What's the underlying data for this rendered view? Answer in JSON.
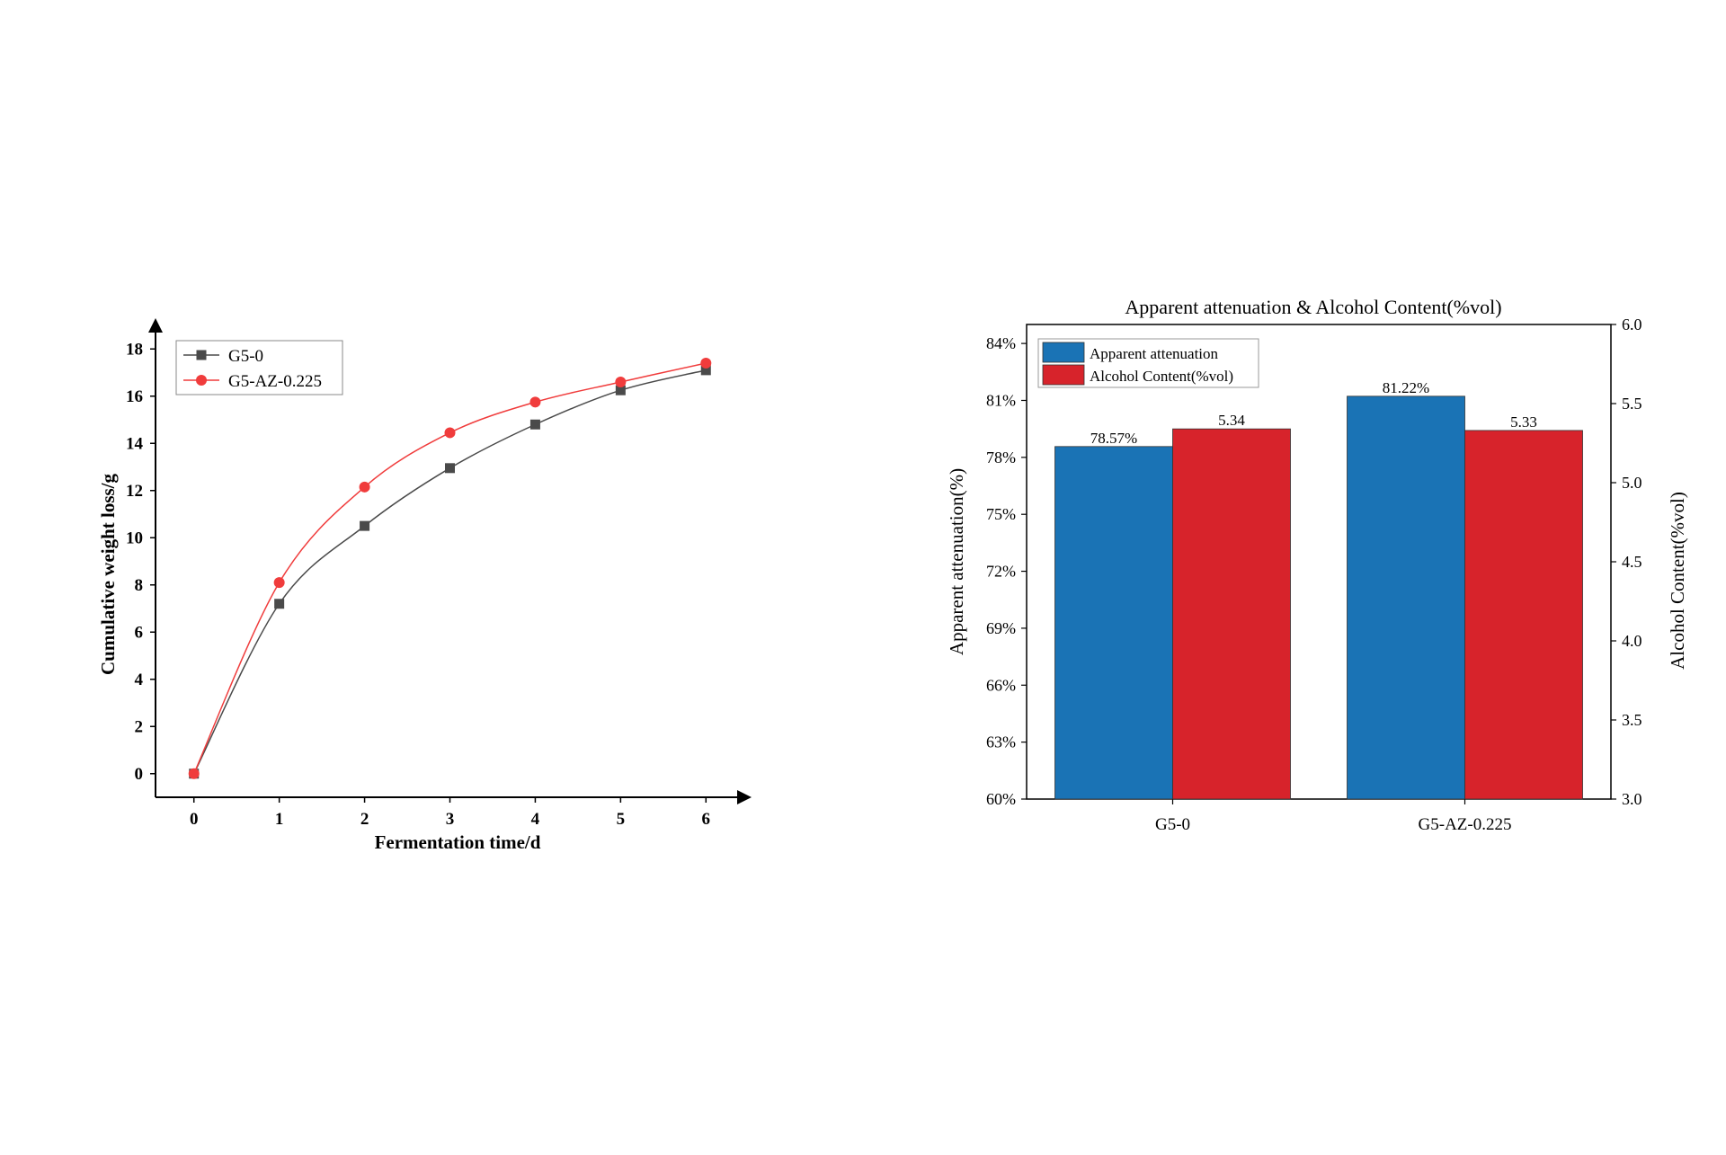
{
  "chart_data": [
    {
      "type": "line",
      "title": "",
      "xlabel": "Fermentation time/d",
      "ylabel": "Cumulative weight loss/g",
      "x": [
        0,
        1,
        2,
        3,
        4,
        5,
        6
      ],
      "xticks": [
        "0",
        "1",
        "2",
        "3",
        "4",
        "5",
        "6"
      ],
      "yticks": [
        "0",
        "2",
        "4",
        "6",
        "8",
        "10",
        "12",
        "14",
        "16",
        "18"
      ],
      "xlim": [
        -0.45,
        6.45
      ],
      "ylim": [
        -1.0,
        19.0
      ],
      "grid": false,
      "legend_position": "top-left",
      "series": [
        {
          "name": "G5-0",
          "marker": "square",
          "color": "#4a4a4a",
          "values": [
            0,
            7.2,
            10.5,
            12.95,
            14.8,
            16.25,
            17.1
          ]
        },
        {
          "name": "G5-AZ-0.225",
          "marker": "circle",
          "color": "#f03c3c",
          "values": [
            0,
            8.1,
            12.15,
            14.45,
            15.75,
            16.6,
            17.4
          ]
        }
      ]
    },
    {
      "type": "bar",
      "title": "Apparent attenuation & Alcohol Content(%vol)",
      "categories": [
        "G5-0",
        "G5-AZ-0.225"
      ],
      "ylabel": "Apparent attenuation(%)",
      "y2label": "Alcohol Content(%vol)",
      "ylim": [
        60,
        85
      ],
      "y2lim": [
        3.0,
        6.0
      ],
      "yticks": [
        "60%",
        "63%",
        "66%",
        "69%",
        "72%",
        "75%",
        "78%",
        "81%",
        "84%"
      ],
      "y2ticks": [
        "3.0",
        "3.5",
        "4.0",
        "4.5",
        "5.0",
        "5.5",
        "6.0"
      ],
      "grid": false,
      "legend_position": "top-left",
      "series": [
        {
          "name": "Apparent attenuation",
          "axis": "left",
          "color": "#1a73b5",
          "values": [
            78.57,
            81.22
          ],
          "labels": [
            "78.57%",
            "81.22%"
          ]
        },
        {
          "name": "Alcohol Content(%vol)",
          "axis": "right",
          "color": "#d7232b",
          "values": [
            5.34,
            5.33
          ],
          "labels": [
            "5.34",
            "5.33"
          ]
        }
      ]
    }
  ]
}
